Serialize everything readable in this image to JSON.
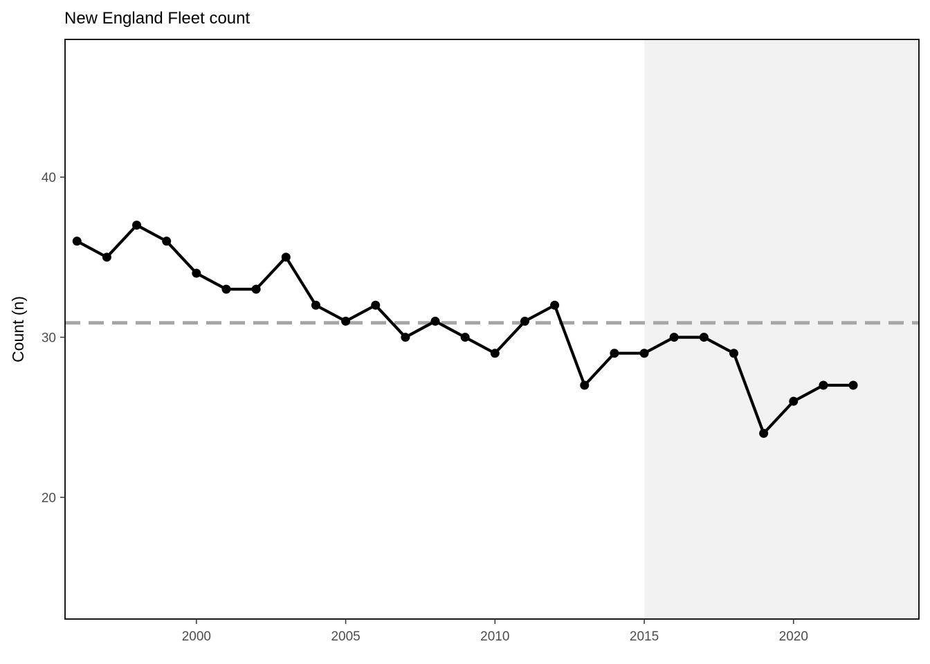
{
  "chart_data": {
    "type": "line",
    "title": "New England Fleet count",
    "xlabel": "",
    "ylabel": "Count (n)",
    "xlim": [
      1995.6,
      2024.2
    ],
    "ylim": [
      12.4,
      48.6
    ],
    "x_ticks": [
      2000,
      2005,
      2010,
      2015,
      2020
    ],
    "y_ticks": [
      20,
      30,
      40
    ],
    "grid": false,
    "legend": "none",
    "mean_line": {
      "value": 30.9,
      "style": "dashed",
      "color": "#a6a6a6"
    },
    "shaded_region": {
      "x_start": 2015,
      "x_end": 2024.2,
      "color": "#f2f2f2"
    },
    "series": [
      {
        "color": "#000000",
        "x": [
          1996,
          1997,
          1998,
          1999,
          2000,
          2001,
          2002,
          2003,
          2004,
          2005,
          2006,
          2007,
          2008,
          2009,
          2010,
          2011,
          2012,
          2013,
          2014,
          2015,
          2016,
          2017,
          2018,
          2019,
          2020,
          2021,
          2022
        ],
        "values": [
          36,
          35,
          37,
          36,
          34,
          33,
          33,
          35,
          32,
          31,
          32,
          30,
          31,
          30,
          29,
          31,
          32,
          27,
          29,
          29,
          30,
          30,
          29,
          24,
          26,
          27,
          27
        ]
      }
    ]
  }
}
